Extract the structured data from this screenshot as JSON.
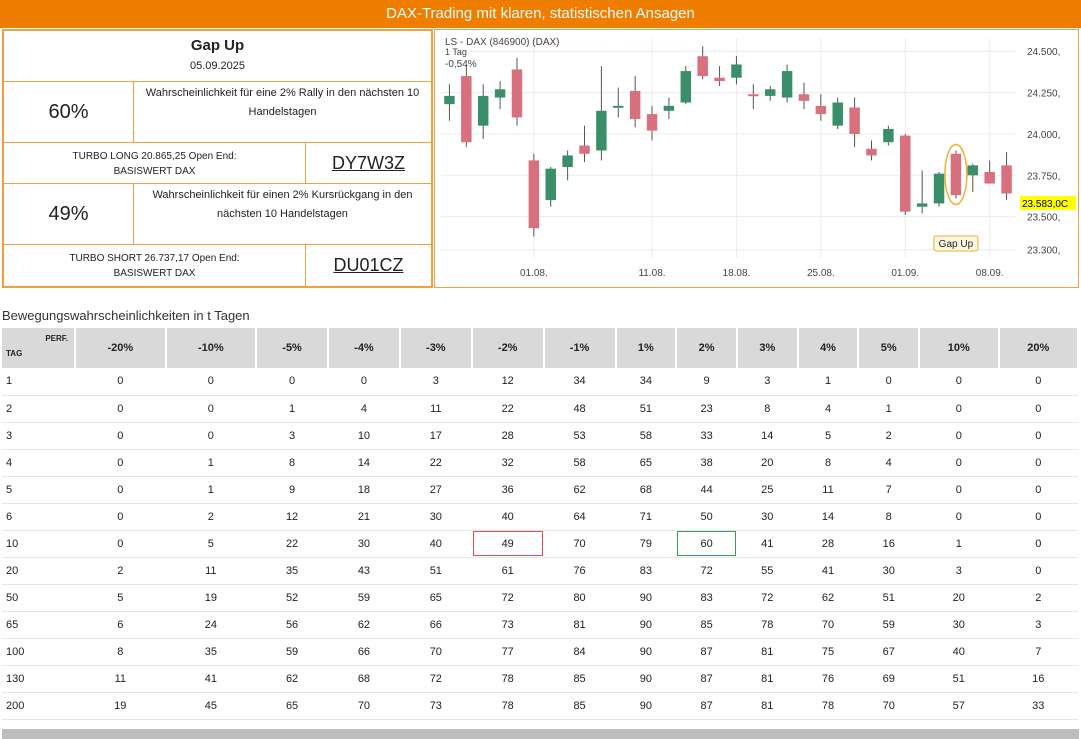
{
  "banner": {
    "title": "DAX-Trading mit klaren, statistischen Ansagen"
  },
  "info": {
    "gap_title": "Gap Up",
    "date": "05.09.2025",
    "rally_pct": "60%",
    "rally_text": "Wahrscheinlichkeit für eine 2% Rally in den nächsten 10 Handelstagen",
    "long_text_1": "TURBO LONG 20.865,25 Open End:",
    "long_text_2": "BASISWERT DAX",
    "long_wkn": "DY7W3Z",
    "drop_pct": "49%",
    "drop_text": "Wahrscheinlichkeit für einen 2% Kursrückgang in den nächsten 10 Handelstagen",
    "short_text_1": "TURBO SHORT 26.737,17 Open End:",
    "short_text_2": "BASISWERT DAX",
    "short_wkn": "DU01CZ"
  },
  "chart_data": {
    "type": "candlestick",
    "title": "LS - DAX (846900) (DAX)",
    "subtitle_1": "1 Tag",
    "subtitle_2": "-0,54%",
    "ylim": [
      23250,
      24580
    ],
    "yticks": [
      23300,
      23500,
      23750,
      24000,
      24250,
      24500
    ],
    "ytick_labels": [
      "23.300,",
      "23.500,",
      "23.750,",
      "24.000,",
      "24.250,",
      "24.500,"
    ],
    "xticks": [
      {
        "index": 5,
        "label": "01.08."
      },
      {
        "index": 12,
        "label": "11.08."
      },
      {
        "index": 17,
        "label": "18.08."
      },
      {
        "index": 22,
        "label": "25.08."
      },
      {
        "index": 27,
        "label": "01.09."
      },
      {
        "index": 32,
        "label": "08.09."
      }
    ],
    "last_price_label": "23.583,0C",
    "last_price": 23583,
    "annotation": {
      "label": "Gap Up",
      "index": 30
    },
    "candles": [
      {
        "o": 24180,
        "h": 24300,
        "l": 24080,
        "c": 24230
      },
      {
        "o": 24350,
        "h": 24420,
        "l": 23920,
        "c": 23950
      },
      {
        "o": 24050,
        "h": 24300,
        "l": 23970,
        "c": 24230
      },
      {
        "o": 24220,
        "h": 24320,
        "l": 24150,
        "c": 24270
      },
      {
        "o": 24390,
        "h": 24460,
        "l": 24050,
        "c": 24100
      },
      {
        "o": 23840,
        "h": 23880,
        "l": 23380,
        "c": 23430
      },
      {
        "o": 23600,
        "h": 23800,
        "l": 23560,
        "c": 23790
      },
      {
        "o": 23800,
        "h": 23900,
        "l": 23720,
        "c": 23870
      },
      {
        "o": 23930,
        "h": 24050,
        "l": 23830,
        "c": 23880
      },
      {
        "o": 23900,
        "h": 24410,
        "l": 23840,
        "c": 24140
      },
      {
        "o": 24160,
        "h": 24280,
        "l": 24100,
        "c": 24170
      },
      {
        "o": 24260,
        "h": 24350,
        "l": 24040,
        "c": 24090
      },
      {
        "o": 24120,
        "h": 24170,
        "l": 23960,
        "c": 24020
      },
      {
        "o": 24140,
        "h": 24220,
        "l": 24090,
        "c": 24170
      },
      {
        "o": 24190,
        "h": 24410,
        "l": 24180,
        "c": 24380
      },
      {
        "o": 24470,
        "h": 24530,
        "l": 24330,
        "c": 24350
      },
      {
        "o": 24340,
        "h": 24410,
        "l": 24290,
        "c": 24320
      },
      {
        "o": 24340,
        "h": 24470,
        "l": 24300,
        "c": 24420
      },
      {
        "o": 24240,
        "h": 24300,
        "l": 24150,
        "c": 24230
      },
      {
        "o": 24230,
        "h": 24290,
        "l": 24200,
        "c": 24270
      },
      {
        "o": 24220,
        "h": 24420,
        "l": 24190,
        "c": 24380
      },
      {
        "o": 24240,
        "h": 24310,
        "l": 24150,
        "c": 24200
      },
      {
        "o": 24170,
        "h": 24240,
        "l": 24080,
        "c": 24120
      },
      {
        "o": 24050,
        "h": 24220,
        "l": 24030,
        "c": 24190
      },
      {
        "o": 24160,
        "h": 24220,
        "l": 23920,
        "c": 24000
      },
      {
        "o": 23910,
        "h": 23960,
        "l": 23840,
        "c": 23870
      },
      {
        "o": 23950,
        "h": 24050,
        "l": 23930,
        "c": 24030
      },
      {
        "o": 23990,
        "h": 24000,
        "l": 23510,
        "c": 23530
      },
      {
        "o": 23560,
        "h": 23780,
        "l": 23520,
        "c": 23580
      },
      {
        "o": 23580,
        "h": 23770,
        "l": 23560,
        "c": 23760
      },
      {
        "o": 23880,
        "h": 23900,
        "l": 23610,
        "c": 23630
      },
      {
        "o": 23750,
        "h": 23820,
        "l": 23650,
        "c": 23810
      },
      {
        "o": 23770,
        "h": 23840,
        "l": 23700,
        "c": 23700
      },
      {
        "o": 23810,
        "h": 23890,
        "l": 23600,
        "c": 23640
      }
    ]
  },
  "table": {
    "title": "Bewegungswahrscheinlichkeiten in t Tagen",
    "corner_perf": "PERF.",
    "corner_tag": "TAG",
    "headers": [
      "-20%",
      "-10%",
      "-5%",
      "-4%",
      "-3%",
      "-2%",
      "-1%",
      "1%",
      "2%",
      "3%",
      "4%",
      "5%",
      "10%",
      "20%"
    ],
    "rows": [
      {
        "day": "1",
        "values": [
          "0",
          "0",
          "0",
          "0",
          "3",
          "12",
          "34",
          "34",
          "9",
          "3",
          "1",
          "0",
          "0",
          "0"
        ]
      },
      {
        "day": "2",
        "values": [
          "0",
          "0",
          "1",
          "4",
          "11",
          "22",
          "48",
          "51",
          "23",
          "8",
          "4",
          "1",
          "0",
          "0"
        ]
      },
      {
        "day": "3",
        "values": [
          "0",
          "0",
          "3",
          "10",
          "17",
          "28",
          "53",
          "58",
          "33",
          "14",
          "5",
          "2",
          "0",
          "0"
        ]
      },
      {
        "day": "4",
        "values": [
          "0",
          "1",
          "8",
          "14",
          "22",
          "32",
          "58",
          "65",
          "38",
          "20",
          "8",
          "4",
          "0",
          "0"
        ]
      },
      {
        "day": "5",
        "values": [
          "0",
          "1",
          "9",
          "18",
          "27",
          "36",
          "62",
          "68",
          "44",
          "25",
          "11",
          "7",
          "0",
          "0"
        ]
      },
      {
        "day": "6",
        "values": [
          "0",
          "2",
          "12",
          "21",
          "30",
          "40",
          "64",
          "71",
          "50",
          "30",
          "14",
          "8",
          "0",
          "0"
        ]
      },
      {
        "day": "10",
        "values": [
          "0",
          "5",
          "22",
          "30",
          "40",
          "49",
          "70",
          "79",
          "60",
          "41",
          "28",
          "16",
          "1",
          "0"
        ]
      },
      {
        "day": "20",
        "values": [
          "2",
          "11",
          "35",
          "43",
          "51",
          "61",
          "76",
          "83",
          "72",
          "55",
          "41",
          "30",
          "3",
          "0"
        ]
      },
      {
        "day": "50",
        "values": [
          "5",
          "19",
          "52",
          "59",
          "65",
          "72",
          "80",
          "90",
          "83",
          "72",
          "62",
          "51",
          "20",
          "2"
        ]
      },
      {
        "day": "65",
        "values": [
          "6",
          "24",
          "56",
          "62",
          "66",
          "73",
          "81",
          "90",
          "85",
          "78",
          "70",
          "59",
          "30",
          "3"
        ]
      },
      {
        "day": "100",
        "values": [
          "8",
          "35",
          "59",
          "66",
          "70",
          "77",
          "84",
          "90",
          "87",
          "81",
          "75",
          "67",
          "40",
          "7"
        ]
      },
      {
        "day": "130",
        "values": [
          "11",
          "41",
          "62",
          "68",
          "72",
          "78",
          "85",
          "90",
          "87",
          "81",
          "76",
          "69",
          "51",
          "16"
        ]
      },
      {
        "day": "200",
        "values": [
          "19",
          "45",
          "65",
          "70",
          "73",
          "78",
          "85",
          "90",
          "87",
          "81",
          "78",
          "70",
          "57",
          "33"
        ]
      }
    ],
    "highlight_red": {
      "row": 6,
      "col": 5
    },
    "highlight_green": {
      "row": 6,
      "col": 8
    }
  },
  "colors": {
    "banner": "#ef7d00",
    "bull": "#3a8f6a",
    "bear": "#d9707e",
    "price_tag": "#ffff00",
    "annotation": "#f0b030"
  }
}
